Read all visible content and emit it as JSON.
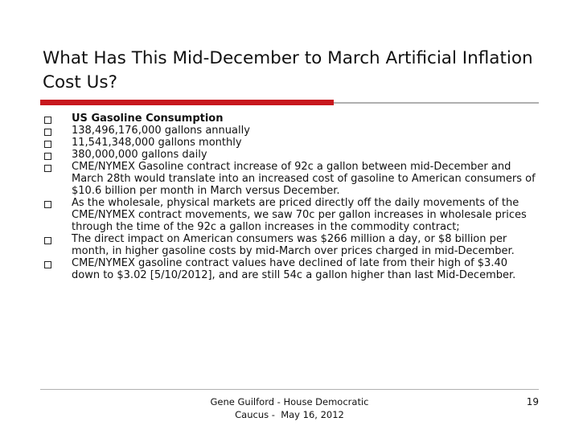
{
  "slide": {
    "title": "What Has This Mid-December to March Artificial Inflation Cost Us?",
    "bullets": [
      {
        "text": "US Gasoline Consumption",
        "bold": true
      },
      {
        "text": "138,496,176,000 gallons annually",
        "bold": false
      },
      {
        "text": "11,541,348,000 gallons monthly",
        "bold": false
      },
      {
        "text": "380,000,000 gallons daily",
        "bold": false
      },
      {
        "text": "CME/NYMEX Gasoline contract increase of 92c a gallon between mid-December and March 28th would translate into an increased cost of gasoline to American consumers of $10.6 billion per month in March versus December.",
        "bold": false
      },
      {
        "text": "As the wholesale, physical markets are priced directly off the daily movements of the CME/NYMEX contract movements, we saw 70c per gallon increases in wholesale prices through the time of the 92c a gallon increases in the commodity contract;",
        "bold": false
      },
      {
        "text": "The direct impact on American consumers was $266 million a day, or $8 billion per month, in higher gasoline costs by mid-March over prices charged in mid-December.",
        "bold": false
      },
      {
        "text": "CME/NYMEX gasoline contract values have declined of late from their high of $3.40 down to $3.02 [5/10/2012], and are still 54c a gallon higher than last Mid-December.",
        "bold": false
      }
    ],
    "footer": {
      "line1": "Gene Guilford - House Democratic",
      "line2": "Caucus -  May 16, 2012"
    },
    "page_number": "19"
  }
}
